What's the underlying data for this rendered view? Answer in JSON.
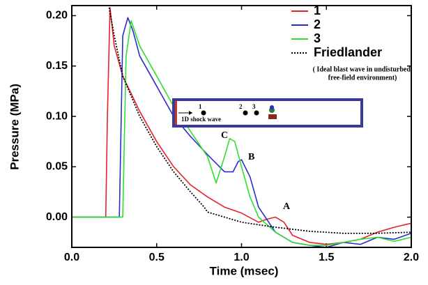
{
  "chart_data": {
    "type": "line",
    "xlabel": "Time (msec)",
    "ylabel": "Pressure (MPa)",
    "xlim": [
      0,
      2.0
    ],
    "ylim": [
      -0.03,
      0.21
    ],
    "xticks": [
      {
        "value": 0,
        "label": "0.0"
      },
      {
        "value": 0.5,
        "label": "0.5"
      },
      {
        "value": 1.0,
        "label": "1.0"
      },
      {
        "value": 1.5,
        "label": "1.5"
      },
      {
        "value": 2.0,
        "label": "2.0"
      }
    ],
    "yticks": [
      {
        "value": 0,
        "label": "0.00"
      },
      {
        "value": 0.05,
        "label": "0.05"
      },
      {
        "value": 0.1,
        "label": "0.10"
      },
      {
        "value": 0.15,
        "label": "0.15"
      },
      {
        "value": 0.2,
        "label": "0.20"
      }
    ],
    "legend": "upper right",
    "legend_note": [
      "( Ideal blast wave in undisturbed,",
      "free-field environment)"
    ],
    "annotations": [
      "A",
      "B",
      "C"
    ],
    "inset": {
      "labels": [
        "1",
        "2",
        "3"
      ],
      "caption": "1D shock wave"
    },
    "series": [
      {
        "name": "1",
        "color": "#e8202a",
        "dash": false,
        "x": [
          0,
          0.2,
          0.21,
          0.225,
          0.25,
          0.3,
          0.4,
          0.5,
          0.6,
          0.7,
          0.8,
          0.9,
          1.0,
          1.1,
          1.15,
          1.2,
          1.25,
          1.3,
          1.4,
          1.5,
          1.6,
          1.7,
          1.8,
          1.9,
          2.0
        ],
        "values": [
          0,
          0,
          0.1,
          0.208,
          0.17,
          0.14,
          0.105,
          0.075,
          0.05,
          0.032,
          0.02,
          0.01,
          0.004,
          -0.005,
          -0.002,
          0.0,
          -0.005,
          -0.018,
          -0.025,
          -0.027,
          -0.025,
          -0.022,
          -0.015,
          -0.01,
          -0.006
        ]
      },
      {
        "name": "2",
        "color": "#2a2ad0",
        "dash": false,
        "x": [
          0,
          0.28,
          0.3,
          0.33,
          0.36,
          0.4,
          0.5,
          0.6,
          0.7,
          0.8,
          0.9,
          0.95,
          0.98,
          1.0,
          1.05,
          1.1,
          1.2,
          1.3,
          1.4,
          1.5,
          1.6,
          1.7,
          1.8,
          1.9,
          2.0
        ],
        "values": [
          0,
          0,
          0.18,
          0.198,
          0.185,
          0.16,
          0.13,
          0.1,
          0.08,
          0.062,
          0.045,
          0.045,
          0.055,
          0.057,
          0.04,
          0.01,
          -0.015,
          -0.025,
          -0.028,
          -0.03,
          -0.025,
          -0.027,
          -0.02,
          -0.022,
          -0.016
        ]
      },
      {
        "name": "3",
        "color": "#2ee02e",
        "dash": false,
        "x": [
          0,
          0.3,
          0.32,
          0.35,
          0.4,
          0.5,
          0.6,
          0.7,
          0.8,
          0.85,
          0.9,
          0.93,
          0.96,
          1.0,
          1.05,
          1.1,
          1.2,
          1.3,
          1.4,
          1.5,
          1.6,
          1.7,
          1.8,
          1.9,
          2.0
        ],
        "values": [
          0,
          0,
          0.16,
          0.195,
          0.17,
          0.14,
          0.11,
          0.085,
          0.06,
          0.034,
          0.06,
          0.078,
          0.075,
          0.05,
          0.02,
          0.0,
          -0.015,
          -0.025,
          -0.028,
          -0.028,
          -0.025,
          -0.022,
          -0.02,
          -0.024,
          -0.02
        ]
      },
      {
        "name": "Friedlander",
        "color": "#000000",
        "dash": true,
        "x": [
          0.22,
          0.25,
          0.3,
          0.4,
          0.5,
          0.6,
          0.7,
          0.78,
          0.8,
          0.9,
          1.0,
          1.2,
          1.4,
          1.6,
          1.8,
          2.0
        ],
        "values": [
          0.208,
          0.18,
          0.14,
          0.1,
          0.07,
          0.045,
          0.025,
          0.01,
          0.005,
          0.0,
          -0.005,
          -0.01,
          -0.014,
          -0.016,
          -0.016,
          -0.015
        ]
      }
    ]
  }
}
